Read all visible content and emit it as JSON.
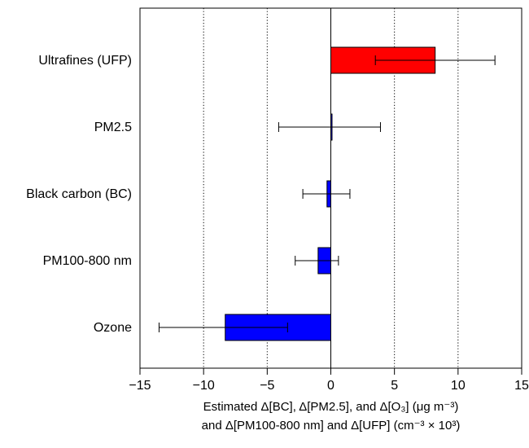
{
  "chart_data": {
    "type": "bar",
    "orientation": "horizontal",
    "categories": [
      "Ultrafines (UFP)",
      "PM2.5",
      "Black carbon (BC)",
      "PM100-800 nm",
      "Ozone"
    ],
    "values": [
      8.2,
      0.0,
      -0.3,
      -1.0,
      -8.3
    ],
    "error_low": [
      3.5,
      -4.1,
      -2.2,
      -2.8,
      -13.5
    ],
    "error_high": [
      12.9,
      3.9,
      1.5,
      0.6,
      -3.4
    ],
    "bar_colors": [
      "#ff0000",
      "#0000ff",
      "#0000ff",
      "#0000ff",
      "#0000ff"
    ],
    "xlim": [
      -15,
      15
    ],
    "xticks": [
      -15,
      -10,
      -5,
      0,
      5,
      10,
      15
    ],
    "xtick_labels": [
      "−15",
      "−10",
      "−5",
      "0",
      "5",
      "10",
      "15"
    ],
    "vertical_gridlines": [
      -10,
      -5,
      5,
      10
    ],
    "grid": "dotted vertical",
    "xlabel_line1": "Estimated Δ[BC], Δ[PM2.5], and Δ[O₃] (μg m⁻³)",
    "xlabel_line2": "and Δ[PM100-800 nm] and Δ[UFP] (cm⁻³ × 10³)"
  }
}
